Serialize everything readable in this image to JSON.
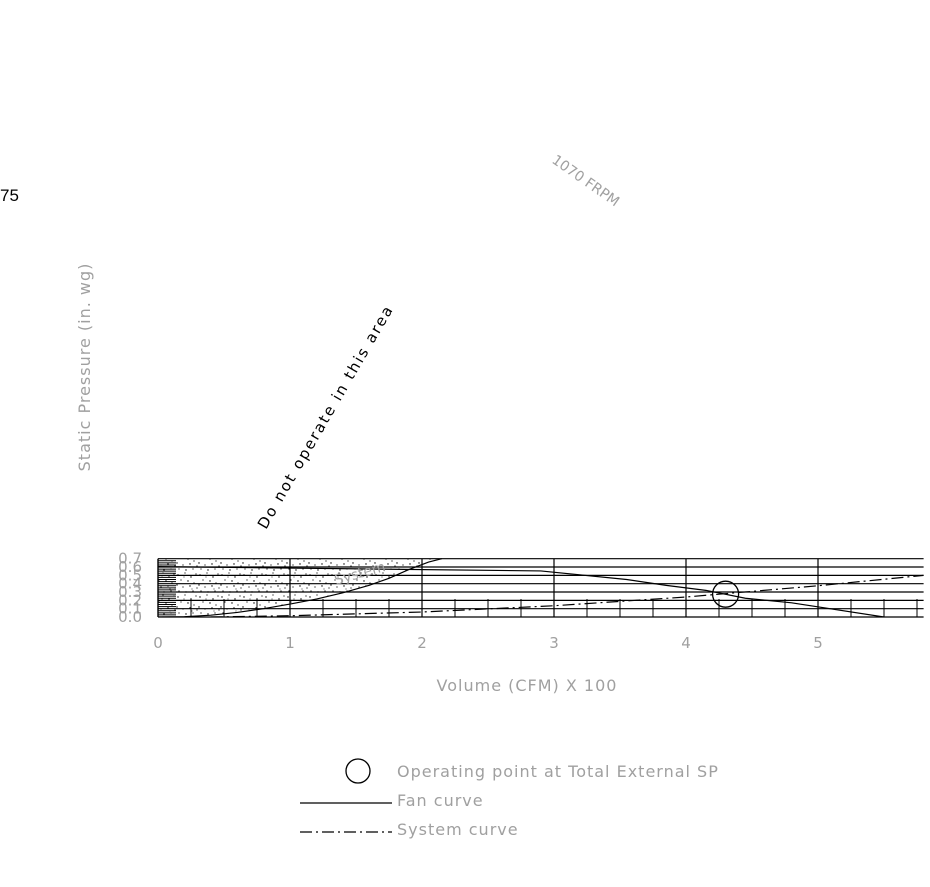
{
  "side_label": "75",
  "chart_data": {
    "type": "line",
    "xlabel": "Volume (CFM) X 100",
    "ylabel": "Static Pressure (in. wg)",
    "xlim": [
      0,
      5.8
    ],
    "ylim": [
      0,
      0.7
    ],
    "x_ticks": [
      "0",
      "1",
      "2",
      "3",
      "4",
      "5"
    ],
    "y_ticks": [
      "0.0",
      "0.1",
      "0.2",
      "0.3",
      "0.4",
      "0.5",
      "0.6",
      "0.7"
    ],
    "grid": true,
    "series": [
      {
        "name": "1070 FRPM",
        "style": "solid",
        "points": [
          [
            0,
            0.605
          ],
          [
            2.9,
            0.553
          ],
          [
            3.55,
            0.45
          ],
          [
            3.85,
            0.38
          ],
          [
            4.15,
            0.32
          ],
          [
            4.45,
            0.225
          ],
          [
            4.8,
            0.17
          ],
          [
            5.5,
            0.0
          ]
        ]
      },
      {
        "name": "System",
        "style": "dash-dot",
        "points": [
          [
            0.4,
            0
          ],
          [
            1,
            0.015
          ],
          [
            2,
            0.06
          ],
          [
            3,
            0.135
          ],
          [
            4,
            0.24
          ],
          [
            5,
            0.375
          ],
          [
            5.8,
            0.5
          ]
        ]
      },
      {
        "name": "",
        "style": "solid",
        "points": [
          [
            0,
            0.0
          ],
          [
            0.2,
            0.003
          ],
          [
            0.4,
            0.022
          ],
          [
            0.6,
            0.055
          ],
          [
            0.8,
            0.1
          ],
          [
            1.0,
            0.155
          ],
          [
            1.2,
            0.215
          ],
          [
            1.4,
            0.29
          ],
          [
            1.6,
            0.38
          ],
          [
            1.75,
            0.465
          ],
          [
            1.9,
            0.57
          ],
          [
            2.05,
            0.66
          ],
          [
            2.15,
            0.7
          ]
        ]
      }
    ],
    "operating_point": [
      4.3,
      0.274
    ],
    "region_label": "Do not operate in this area",
    "legend": [
      {
        "symbol": "circle",
        "label": "Operating point at Total External SP"
      },
      {
        "symbol": "solid",
        "label": "Fan curve"
      },
      {
        "symbol": "dash-dot",
        "label": "System curve"
      }
    ],
    "legend_position": "bottom-center"
  }
}
